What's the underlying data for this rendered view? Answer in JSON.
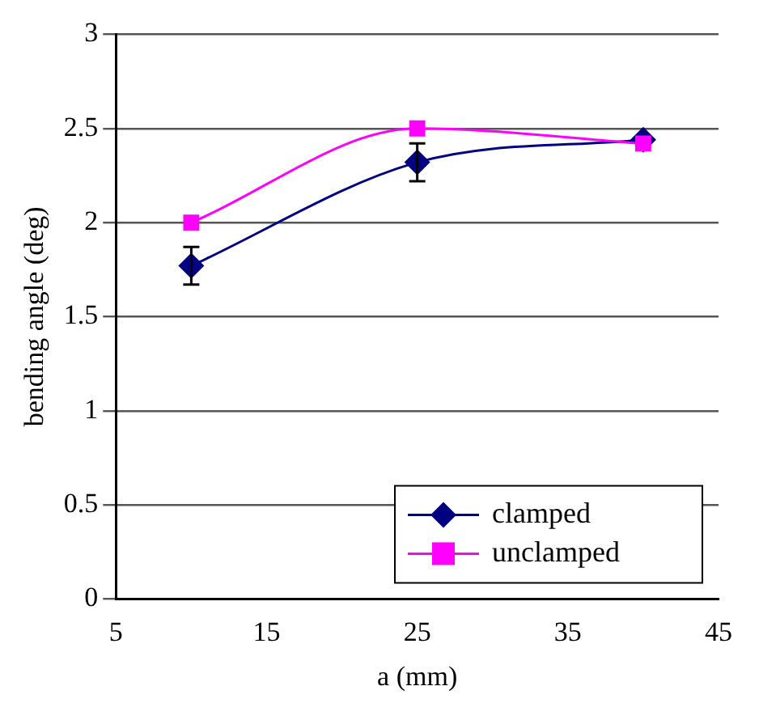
{
  "chart_data": {
    "type": "line",
    "xlabel": "a (mm)",
    "ylabel": "bending angle (deg)",
    "x": [
      10,
      25,
      40
    ],
    "series": [
      {
        "name": "clamped",
        "color": "#000080",
        "values": [
          1.77,
          2.32,
          2.44
        ],
        "errors": [
          0.1,
          0.1,
          null
        ],
        "marker": "diamond"
      },
      {
        "name": "unclamped",
        "color": "#ff00ff",
        "values": [
          2.0,
          2.5,
          2.42
        ],
        "marker": "square"
      }
    ],
    "xlim": [
      5,
      45
    ],
    "xticks": [
      5,
      15,
      25,
      35,
      45
    ],
    "ylim": [
      0,
      3
    ],
    "yticks": [
      0,
      0.5,
      1,
      1.5,
      2,
      2.5,
      3
    ],
    "grid": "y",
    "legend": "bottom right"
  }
}
